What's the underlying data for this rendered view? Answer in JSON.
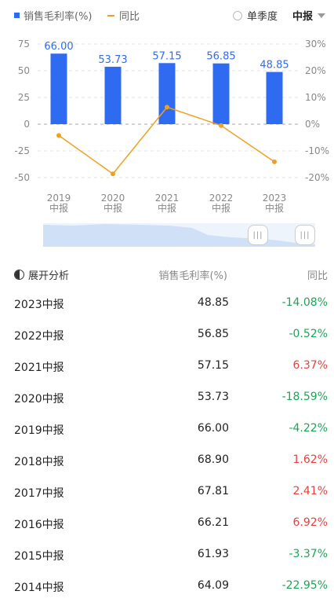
{
  "legend": {
    "bar_label": "销售毛利率(%)",
    "line_label": "同比",
    "single_quarter_label": "单季度",
    "period_selected": "中报"
  },
  "colors": {
    "bar": "#2f6bf0",
    "line": "#f0a020",
    "negative": "#1ca653",
    "positive": "#e8413c"
  },
  "chart_data": {
    "type": "bar",
    "categories": [
      "2019\n中报",
      "2020\n中报",
      "2021\n中报",
      "2022\n中报",
      "2023\n中报"
    ],
    "series": [
      {
        "name": "销售毛利率(%)",
        "type": "bar",
        "axis": "left",
        "values": [
          66.0,
          53.73,
          57.15,
          56.85,
          48.85
        ],
        "labels": [
          "66.00",
          "53.73",
          "57.15",
          "56.85",
          "48.85"
        ]
      },
      {
        "name": "同比",
        "type": "line",
        "axis": "right",
        "values": [
          -4.22,
          -18.59,
          6.37,
          -0.52,
          -14.08
        ]
      }
    ],
    "left_axis": {
      "ticks": [
        75,
        50,
        25,
        0,
        -25,
        -50
      ],
      "ylim": [
        -50,
        75
      ]
    },
    "right_axis": {
      "ticks": [
        "30%",
        "20%",
        "10%",
        "0%",
        "-10%",
        "-20%"
      ],
      "ylim": [
        -20,
        30
      ]
    },
    "grid": true
  },
  "table": {
    "expand_label": "展开分析",
    "header_value": "销售毛利率(%)",
    "header_yoy": "同比",
    "rows": [
      {
        "period": "2023中报",
        "value": "48.85",
        "yoy": "-14.08%",
        "sign": "neg"
      },
      {
        "period": "2022中报",
        "value": "56.85",
        "yoy": "-0.52%",
        "sign": "neg"
      },
      {
        "period": "2021中报",
        "value": "57.15",
        "yoy": "6.37%",
        "sign": "pos"
      },
      {
        "period": "2020中报",
        "value": "53.73",
        "yoy": "-18.59%",
        "sign": "neg"
      },
      {
        "period": "2019中报",
        "value": "66.00",
        "yoy": "-4.22%",
        "sign": "neg"
      },
      {
        "period": "2018中报",
        "value": "68.90",
        "yoy": "1.62%",
        "sign": "pos"
      },
      {
        "period": "2017中报",
        "value": "67.81",
        "yoy": "2.41%",
        "sign": "pos"
      },
      {
        "period": "2016中报",
        "value": "66.21",
        "yoy": "6.92%",
        "sign": "pos"
      },
      {
        "period": "2015中报",
        "value": "61.93",
        "yoy": "-3.37%",
        "sign": "neg"
      },
      {
        "period": "2014中报",
        "value": "64.09",
        "yoy": "-22.95%",
        "sign": "neg"
      }
    ]
  }
}
